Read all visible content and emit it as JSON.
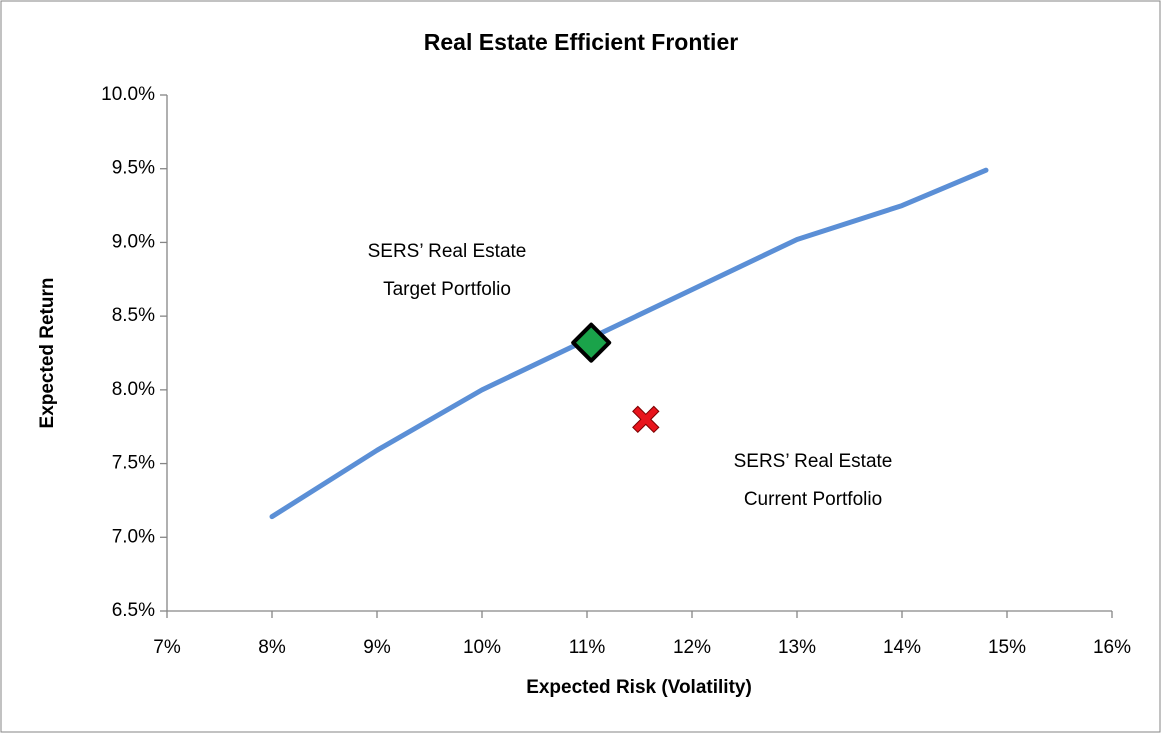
{
  "chart_data": {
    "type": "line",
    "title": "Real Estate Efficient Frontier",
    "x_label": "Expected Risk (Volatility)",
    "y_label": "Expected Return",
    "xlim": [
      7,
      16
    ],
    "xticks": [
      {
        "value": 7,
        "label": "7%"
      },
      {
        "value": 8,
        "label": "8%"
      },
      {
        "value": 9,
        "label": "9%"
      },
      {
        "value": 10,
        "label": "10%"
      },
      {
        "value": 11,
        "label": "11%"
      },
      {
        "value": 12,
        "label": "12%"
      },
      {
        "value": 13,
        "label": "13%"
      },
      {
        "value": 14,
        "label": "14%"
      },
      {
        "value": 15,
        "label": "15%"
      },
      {
        "value": 16,
        "label": "16%"
      }
    ],
    "ylim": [
      6.5,
      10.0
    ],
    "yticks": [
      {
        "value": 6.5,
        "label": "6.5%"
      },
      {
        "value": 7.0,
        "label": "7.0%"
      },
      {
        "value": 7.5,
        "label": "7.5%"
      },
      {
        "value": 8.0,
        "label": "8.0%"
      },
      {
        "value": 8.5,
        "label": "8.5%"
      },
      {
        "value": 9.0,
        "label": "9.0%"
      },
      {
        "value": 9.5,
        "label": "9.5%"
      },
      {
        "value": 10.0,
        "label": "10.0%"
      }
    ],
    "grid": false,
    "series": [
      {
        "color": "#5b8fd6",
        "marker": "line",
        "x": [
          8,
          9,
          10,
          11,
          12,
          13,
          14,
          14.8
        ],
        "values": [
          7.14,
          7.59,
          8.0,
          8.34,
          8.68,
          9.02,
          9.25,
          9.49
        ]
      },
      {
        "color": "#1aa34a",
        "marker": "diamond",
        "x": [
          11.04
        ],
        "values": [
          8.32
        ]
      },
      {
        "color": "#e8141c",
        "marker": "cross",
        "x": [
          11.56
        ],
        "values": [
          7.8
        ]
      }
    ],
    "annotations": [
      {
        "lines": [
          "SERS’ Real Estate",
          "Target Portfolio"
        ]
      },
      {
        "lines": [
          "SERS’ Real Estate",
          "Current Portfolio"
        ]
      }
    ]
  }
}
